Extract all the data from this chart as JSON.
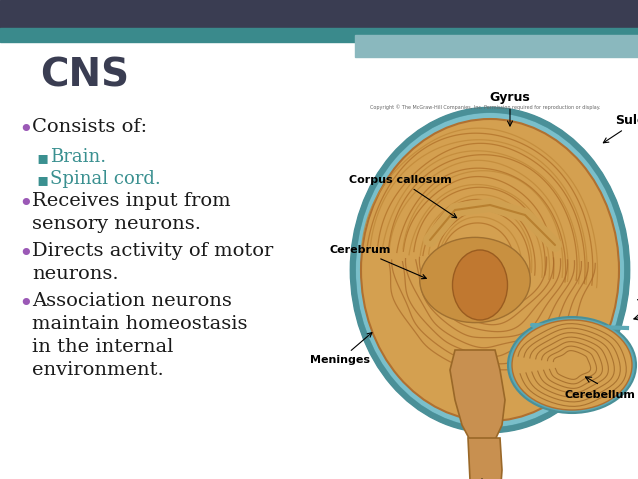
{
  "title": "CNS",
  "title_color": "#3a3d52",
  "title_fontsize": 28,
  "title_fontweight": "bold",
  "background_color": "#ffffff",
  "header_dark_color": "#3a3d52",
  "header_teal_color": "#3a8a8c",
  "header_light_teal": "#8ab8be",
  "bullet_color": "#1a1a1a",
  "bullet_dot_color": "#9b59b6",
  "sub_bullet_color": "#3a9090",
  "main_fontsize": 14,
  "sub_fontsize": 13,
  "bullet_points": [
    {
      "text": "Consists of:",
      "level": 0
    },
    {
      "text": "Brain.",
      "level": 1
    },
    {
      "text": "Spinal cord.",
      "level": 1
    },
    {
      "text": "Receives input from\nsensory neurons.",
      "level": 0
    },
    {
      "text": "Directs activity of motor\nneurons.",
      "level": 0
    },
    {
      "text": "Association neurons\nmaintain homeostasis\nin the internal\nenvironment.",
      "level": 0
    }
  ],
  "brain_color": "#d4a055",
  "brain_dark": "#b8803a",
  "brain_meninges": "#5ba8b0",
  "brain_inner": "#c07830",
  "copyright_text": "Copyright © The McGraw-Hill Companies, Inc. Permission required for reproduction or display.",
  "label_fontsize": 8,
  "label_fontweight": "bold"
}
